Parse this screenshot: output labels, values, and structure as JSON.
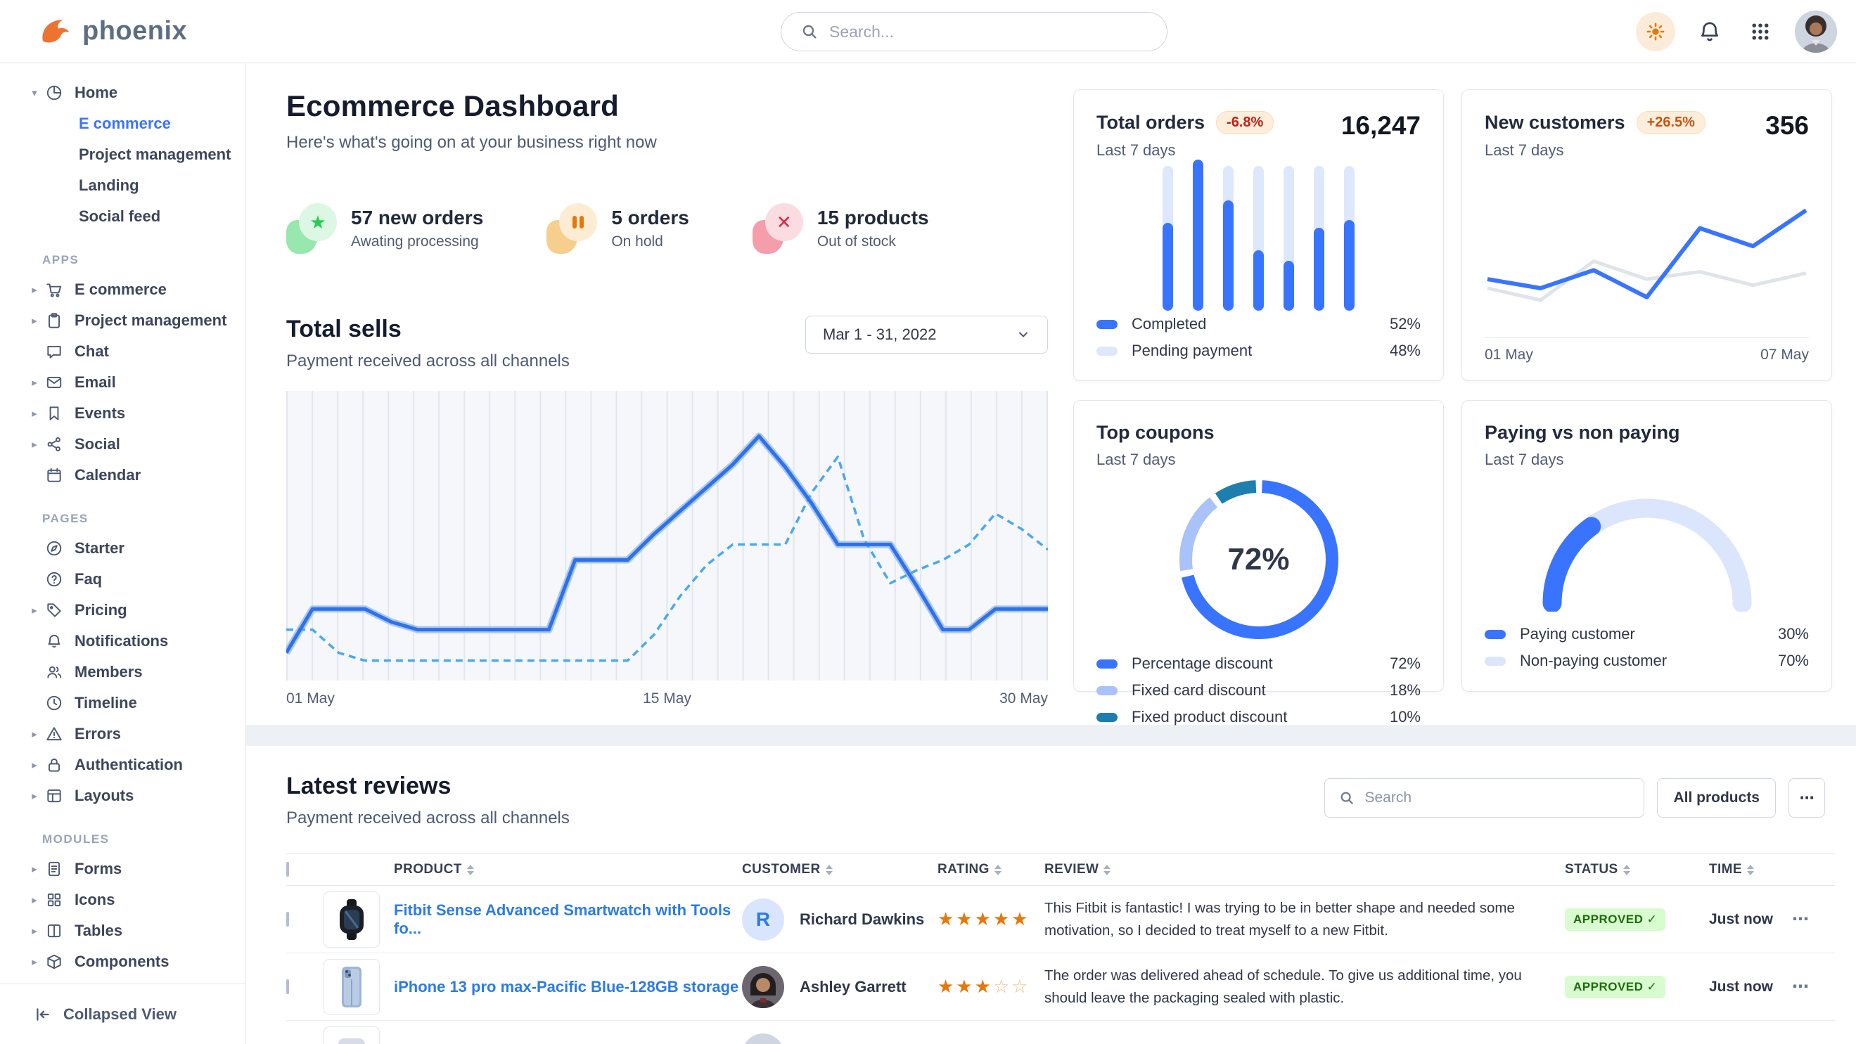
{
  "brand": {
    "name": "phoenix"
  },
  "topnav": {
    "search_placeholder": "Search..."
  },
  "sidebar": {
    "sections": [
      {
        "label": "",
        "items": [
          {
            "label": "Home",
            "icon": "pie",
            "caret": "down",
            "children": [
              {
                "label": "E commerce",
                "active": true
              },
              {
                "label": "Project management",
                "active": false
              },
              {
                "label": "Landing",
                "active": false
              },
              {
                "label": "Social feed",
                "active": false
              }
            ]
          }
        ]
      },
      {
        "label": "APPS",
        "items": [
          {
            "label": "E commerce",
            "icon": "cart",
            "caret": "right"
          },
          {
            "label": "Project management",
            "icon": "clipboard",
            "caret": "right"
          },
          {
            "label": "Chat",
            "icon": "chat",
            "caret": ""
          },
          {
            "label": "Email",
            "icon": "mail",
            "caret": "right"
          },
          {
            "label": "Events",
            "icon": "bookmark",
            "caret": "right"
          },
          {
            "label": "Social",
            "icon": "share",
            "caret": "right"
          },
          {
            "label": "Calendar",
            "icon": "calendar",
            "caret": ""
          }
        ]
      },
      {
        "label": "PAGES",
        "items": [
          {
            "label": "Starter",
            "icon": "compass",
            "caret": ""
          },
          {
            "label": "Faq",
            "icon": "question",
            "caret": ""
          },
          {
            "label": "Pricing",
            "icon": "tag",
            "caret": "right"
          },
          {
            "label": "Notifications",
            "icon": "bell",
            "caret": ""
          },
          {
            "label": "Members",
            "icon": "users",
            "caret": ""
          },
          {
            "label": "Timeline",
            "icon": "clock",
            "caret": ""
          },
          {
            "label": "Errors",
            "icon": "warning",
            "caret": "right"
          },
          {
            "label": "Authentication",
            "icon": "lock",
            "caret": "right"
          },
          {
            "label": "Layouts",
            "icon": "layout",
            "caret": "right"
          }
        ]
      },
      {
        "label": "MODULES",
        "items": [
          {
            "label": "Forms",
            "icon": "doc",
            "caret": "right"
          },
          {
            "label": "Icons",
            "icon": "grid",
            "caret": "right"
          },
          {
            "label": "Tables",
            "icon": "columns",
            "caret": "right"
          },
          {
            "label": "Components",
            "icon": "box",
            "caret": "right"
          }
        ]
      }
    ],
    "collapse_label": "Collapsed View"
  },
  "page": {
    "title": "Ecommerce Dashboard",
    "subtitle": "Here's what's going on at your business right now"
  },
  "stats": [
    {
      "title": "57 new orders",
      "subtitle": "Awating processing",
      "icon": "star",
      "glyph_color": "#27cc4e",
      "circle_bg": "#dcf7e3",
      "blob_bg": "#97e7ae"
    },
    {
      "title": "5 orders",
      "subtitle": "On hold",
      "icon": "pause",
      "glyph_color": "#e5780b",
      "circle_bg": "#fcecd4",
      "blob_bg": "#f6cf8f"
    },
    {
      "title": "15 products",
      "subtitle": "Out of stock",
      "icon": "x",
      "glyph_color": "#dd2742",
      "circle_bg": "#fbdce1",
      "blob_bg": "#f49dab"
    }
  ],
  "total_sells": {
    "title": "Total sells",
    "subtitle": "Payment received across all channels",
    "date_range": "Mar 1 - 31, 2022",
    "x_labels": [
      "01 May",
      "15 May",
      "30 May"
    ]
  },
  "cards": {
    "total_orders": {
      "title": "Total orders",
      "badge": "-6.8%",
      "badge_color": "#bc2013",
      "value": "16,247",
      "period": "Last 7 days",
      "legend": [
        {
          "label": "Completed",
          "value": "52%",
          "color": "#3874ff"
        },
        {
          "label": "Pending payment",
          "value": "48%",
          "color": "#dde8fc"
        }
      ]
    },
    "new_customers": {
      "title": "New customers",
      "badge": "+26.5%",
      "badge_color": "#c85411",
      "value": "356",
      "period": "Last 7 days",
      "x_labels": [
        "01 May",
        "07 May"
      ]
    },
    "top_coupons": {
      "title": "Top coupons",
      "period": "Last 7 days",
      "center_label": "72%",
      "legend": [
        {
          "label": "Percentage discount",
          "value": "72%",
          "color": "#3874ff"
        },
        {
          "label": "Fixed card discount",
          "value": "18%",
          "color": "#a9c2f9"
        },
        {
          "label": "Fixed product discount",
          "value": "10%",
          "color": "#1e7fae"
        }
      ]
    },
    "paying": {
      "title": "Paying vs non paying",
      "period": "Last 7 days",
      "legend": [
        {
          "label": "Paying customer",
          "value": "30%",
          "color": "#3874ff"
        },
        {
          "label": "Non-paying customer",
          "value": "70%",
          "color": "#dbe5fb"
        }
      ]
    }
  },
  "reviews": {
    "title": "Latest reviews",
    "subtitle": "Payment received across all channels",
    "search_placeholder": "Search",
    "filter_button": "All products",
    "more_button": "...",
    "columns": [
      "PRODUCT",
      "CUSTOMER",
      "RATING",
      "REVIEW",
      "STATUS",
      "TIME"
    ],
    "rows": [
      {
        "product": "Fitbit Sense Advanced Smartwatch with Tools fo...",
        "image": "smartwatch",
        "customer": "Richard Dawkins",
        "avatar_type": "initial",
        "avatar_text": "R",
        "rating": 5,
        "review": "This Fitbit is fantastic! I was trying to be in better shape and needed some motivation, so I decided to treat myself to a new Fitbit.",
        "status": "APPROVED",
        "time": "Just now",
        "partial": false
      },
      {
        "product": "iPhone 13 pro max-Pacific Blue-128GB storage",
        "image": "iphone",
        "customer": "Ashley Garrett",
        "avatar_type": "photo",
        "avatar_text": "",
        "rating": 3,
        "review": "The order was delivered ahead of schedule. To give us additional time, you should leave the packaging sealed with plastic.",
        "status": "APPROVED",
        "time": "Just now",
        "partial": false
      },
      {
        "product": "",
        "image": "generic",
        "customer": "",
        "avatar_type": "photo",
        "avatar_text": "",
        "rating": 0,
        "review": "",
        "status": "",
        "time": "",
        "partial": true
      }
    ]
  },
  "chart_data": [
    {
      "id": "total_sells",
      "type": "line",
      "title": "Total sells",
      "x_axis_labels": [
        "01 May",
        "15 May",
        "30 May"
      ],
      "ylim": [
        0,
        100
      ],
      "grid": "vertical",
      "series": [
        {
          "name": "current",
          "style": "solid",
          "color": "#2e72e9",
          "values": [
            8,
            25,
            25,
            25,
            20,
            17,
            17,
            17,
            17,
            17,
            17,
            44,
            44,
            44,
            54,
            63,
            72,
            81,
            92,
            80,
            66,
            50,
            50,
            50,
            34,
            17,
            17,
            25,
            25,
            25
          ]
        },
        {
          "name": "previous",
          "style": "dashed",
          "color": "#4aa8ee",
          "values": [
            17,
            17,
            8,
            5,
            5,
            5,
            5,
            5,
            5,
            5,
            5,
            5,
            5,
            5,
            15,
            30,
            42,
            50,
            50,
            50,
            70,
            84,
            52,
            35,
            40,
            44,
            50,
            62,
            56,
            48
          ]
        }
      ]
    },
    {
      "id": "total_orders_bars",
      "type": "bar",
      "stacked": true,
      "categories": [
        1,
        2,
        3,
        4,
        5,
        6,
        7
      ],
      "series": [
        {
          "name": "Completed",
          "color": "#3874ff",
          "values": [
            58,
            100,
            73,
            40,
            33,
            55,
            60
          ]
        },
        {
          "name": "Pending payment",
          "color": "#dde8fc",
          "values": [
            38,
            0,
            23,
            56,
            63,
            41,
            36
          ]
        }
      ],
      "summary": {
        "Completed": "52%",
        "Pending payment": "48%"
      }
    },
    {
      "id": "new_customers",
      "type": "line",
      "x_axis_labels": [
        "01 May",
        "07 May"
      ],
      "ylim": [
        0,
        100
      ],
      "series": [
        {
          "name": "New customers",
          "style": "solid",
          "color": "#3874ff",
          "values": [
            30,
            24,
            36,
            18,
            64,
            52,
            76
          ]
        },
        {
          "name": "previous period",
          "style": "solid",
          "color": "#dfe3ea",
          "values": [
            24,
            16,
            42,
            30,
            35,
            26,
            34
          ]
        }
      ]
    },
    {
      "id": "top_coupons",
      "type": "pie",
      "variant": "donut",
      "center_label": "72%",
      "slices": [
        {
          "label": "Percentage discount",
          "value": 72,
          "color": "#3874ff"
        },
        {
          "label": "Fixed card discount",
          "value": 18,
          "color": "#a9c2f9"
        },
        {
          "label": "Fixed product discount",
          "value": 10,
          "color": "#1e7fae"
        }
      ]
    },
    {
      "id": "paying_gauge",
      "type": "pie",
      "variant": "half-gauge",
      "slices": [
        {
          "label": "Paying customer",
          "value": 30,
          "color": "#3874ff"
        },
        {
          "label": "Non-paying customer",
          "value": 70,
          "color": "#dbe5fb"
        }
      ]
    }
  ]
}
